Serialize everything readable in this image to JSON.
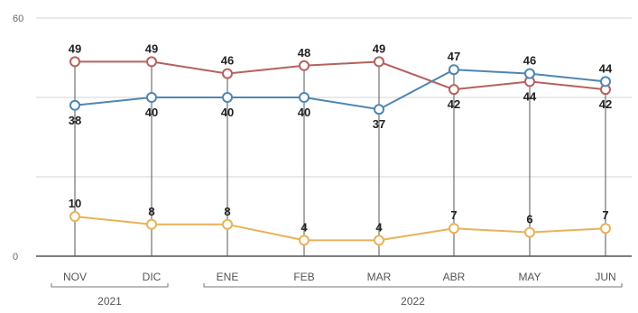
{
  "chart_data": {
    "type": "line",
    "categories": [
      "NOV",
      "DIC",
      "ENE",
      "FEB",
      "MAR",
      "ABR",
      "MAY",
      "JUN"
    ],
    "year_groups": [
      {
        "label": "2021",
        "from": 0,
        "to": 1
      },
      {
        "label": "2022",
        "from": 2,
        "to": 7
      }
    ],
    "series": [
      {
        "values": [
          49,
          49,
          46,
          48,
          49,
          42,
          44,
          42
        ],
        "color": "#b5615e",
        "label_position": [
          "above",
          "above",
          "above",
          "above",
          "above",
          "below",
          "below",
          "below"
        ]
      },
      {
        "values": [
          38,
          40,
          40,
          40,
          37,
          47,
          46,
          44
        ],
        "color": "#4f86b1",
        "label_position": [
          "below",
          "below",
          "below",
          "below",
          "below",
          "above",
          "above",
          "above"
        ]
      },
      {
        "values": [
          10,
          8,
          8,
          4,
          4,
          7,
          6,
          7
        ],
        "color": "#e8b25a",
        "label_position": [
          "above",
          "above",
          "above",
          "above",
          "above",
          "above",
          "above",
          "above"
        ]
      }
    ],
    "ylim": [
      0,
      60
    ],
    "yticks_labeled": [
      "0",
      "60"
    ],
    "gridlines": [
      20,
      40,
      60
    ],
    "grid": true
  }
}
